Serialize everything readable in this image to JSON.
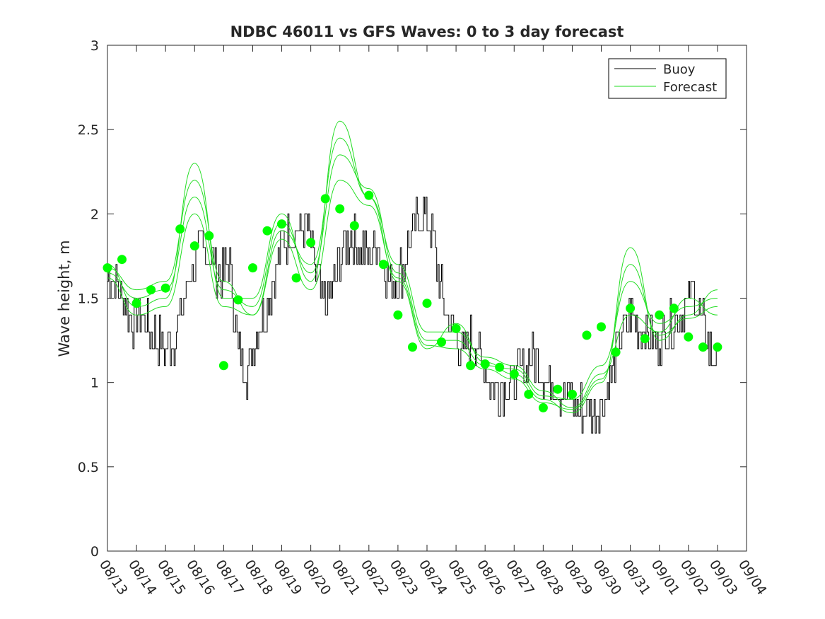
{
  "chart_data": {
    "type": "line",
    "title": "NDBC 46011 vs GFS Waves: 0 to 3 day forecast",
    "xlabel": "",
    "ylabel": "Wave height, m",
    "ylim": [
      0,
      3
    ],
    "xlim_days": [
      0,
      22
    ],
    "y_ticks": [
      "0",
      "0.5",
      "1",
      "1.5",
      "2",
      "2.5",
      "3"
    ],
    "x_ticks": [
      "08/13",
      "08/14",
      "08/15",
      "08/16",
      "08/17",
      "08/18",
      "08/19",
      "08/20",
      "08/21",
      "08/22",
      "08/23",
      "08/24",
      "08/25",
      "08/26",
      "08/27",
      "08/28",
      "08/29",
      "08/30",
      "08/31",
      "09/01",
      "09/02",
      "09/03",
      "09/04"
    ],
    "legend": {
      "position": "top-right",
      "entries": [
        {
          "name": "Buoy",
          "color": "#000000"
        },
        {
          "name": "Forecast",
          "color": "#00dd00"
        }
      ]
    },
    "colors": {
      "buoy": "#000000",
      "forecast": "#00ff00",
      "forecast_line": "#22dd22"
    },
    "buoy_anchors": {
      "x": [
        0,
        0.3,
        0.6,
        0.9,
        1.2,
        1.5,
        1.8,
        2.1,
        2.4,
        2.7,
        3.0,
        3.3,
        3.6,
        3.9,
        4.2,
        4.5,
        4.8,
        5.1,
        5.4,
        5.7,
        6.0,
        6.3,
        6.6,
        6.9,
        7.2,
        7.5,
        7.8,
        8.1,
        8.4,
        8.7,
        9.0,
        9.3,
        9.6,
        9.9,
        10.2,
        10.5,
        10.8,
        11.1,
        11.4,
        11.7,
        12.0,
        12.3,
        12.6,
        12.9,
        13.2,
        13.5,
        13.8,
        14.1,
        14.4,
        14.7,
        15.0,
        15.3,
        15.6,
        15.9,
        16.2,
        16.5,
        16.8,
        17.1,
        17.4,
        17.7,
        18.0,
        18.3,
        18.6,
        18.9,
        19.2,
        19.5,
        19.8,
        20.1,
        20.4,
        20.7,
        21.0
      ],
      "y": [
        1.65,
        1.6,
        1.45,
        1.35,
        1.4,
        1.3,
        1.25,
        1.2,
        1.3,
        1.55,
        1.7,
        1.8,
        1.75,
        1.6,
        1.7,
        1.2,
        1.05,
        1.3,
        1.4,
        1.6,
        1.8,
        1.9,
        1.9,
        1.95,
        1.6,
        1.45,
        1.6,
        1.8,
        1.85,
        1.8,
        1.75,
        1.85,
        1.65,
        1.6,
        1.7,
        1.9,
        2.0,
        1.95,
        1.6,
        1.4,
        1.25,
        1.15,
        1.3,
        1.1,
        1.0,
        0.95,
        1.0,
        1.05,
        1.1,
        1.15,
        1.05,
        1.0,
        0.95,
        0.9,
        0.85,
        0.85,
        0.85,
        0.9,
        1.1,
        1.3,
        1.4,
        1.35,
        1.3,
        1.25,
        1.3,
        1.35,
        1.4,
        1.55,
        1.4,
        1.2,
        1.1
      ]
    },
    "forecast_series": [
      {
        "name": "run 1",
        "x": [
          0,
          1,
          2,
          3,
          4,
          5,
          6,
          7,
          8,
          9,
          10,
          11,
          12,
          13,
          14,
          15,
          16,
          17,
          18,
          19,
          20,
          21
        ],
        "y": [
          1.68,
          1.55,
          1.6,
          2.2,
          1.6,
          1.4,
          1.9,
          1.7,
          2.45,
          2.1,
          1.7,
          1.3,
          1.3,
          1.15,
          1.1,
          0.95,
          0.85,
          1.05,
          1.4,
          1.3,
          1.5,
          1.4
        ]
      },
      {
        "name": "run 2",
        "x": [
          0,
          1,
          2,
          3,
          4,
          5,
          6,
          7,
          8,
          9,
          10,
          11,
          12,
          13,
          14,
          15,
          16,
          17,
          18,
          19,
          20,
          21
        ],
        "y": [
          1.65,
          1.5,
          1.55,
          2.1,
          1.55,
          1.45,
          1.95,
          1.65,
          2.35,
          2.15,
          1.65,
          1.25,
          1.25,
          1.1,
          1.08,
          0.92,
          0.9,
          1.1,
          1.6,
          1.35,
          1.45,
          1.5
        ]
      },
      {
        "name": "run 3",
        "x": [
          0,
          1,
          2,
          3,
          4,
          5,
          6,
          7,
          8,
          9,
          10,
          11,
          12,
          13,
          14,
          15,
          16,
          17,
          18,
          19,
          20,
          21
        ],
        "y": [
          1.7,
          1.45,
          1.5,
          2.3,
          1.5,
          1.5,
          2.0,
          1.6,
          2.55,
          2.1,
          1.6,
          1.2,
          1.35,
          1.12,
          1.05,
          0.9,
          0.82,
          1.0,
          1.8,
          1.25,
          1.4,
          1.55
        ]
      },
      {
        "name": "run 4",
        "x": [
          0,
          1,
          2,
          3,
          4,
          5,
          6,
          7,
          8,
          9,
          10,
          11,
          12,
          13,
          14,
          15,
          16,
          17,
          18,
          19,
          20,
          21
        ],
        "y": [
          1.62,
          1.4,
          1.45,
          2.0,
          1.45,
          1.4,
          1.85,
          1.55,
          2.2,
          2.05,
          1.62,
          1.22,
          1.2,
          1.08,
          1.02,
          0.88,
          0.84,
          1.02,
          1.7,
          1.28,
          1.38,
          1.45
        ]
      }
    ],
    "forecast_points": {
      "x": [
        0,
        0.5,
        1,
        1.5,
        2,
        2.5,
        3,
        3.5,
        4,
        4.5,
        5,
        5.5,
        6,
        6.5,
        7,
        7.5,
        8,
        8.5,
        9,
        9.5,
        10,
        10.5,
        11,
        11.5,
        12,
        12.5,
        13,
        13.5,
        14,
        14.5,
        15,
        15.5,
        16,
        16.5,
        17,
        17.5,
        18,
        18.5,
        19,
        19.5,
        20,
        20.5,
        21
      ],
      "y": [
        1.68,
        1.73,
        1.47,
        1.55,
        1.56,
        1.91,
        1.81,
        1.87,
        1.1,
        1.49,
        1.68,
        1.9,
        1.94,
        1.62,
        1.83,
        2.09,
        2.03,
        1.93,
        2.11,
        1.7,
        1.4,
        1.21,
        1.47,
        1.24,
        1.32,
        1.1,
        1.11,
        1.09,
        1.05,
        0.93,
        0.85,
        0.96,
        0.93,
        1.28,
        1.33,
        1.18,
        1.44,
        1.26,
        1.4,
        1.44,
        1.27,
        1.21,
        1.21
      ]
    }
  }
}
